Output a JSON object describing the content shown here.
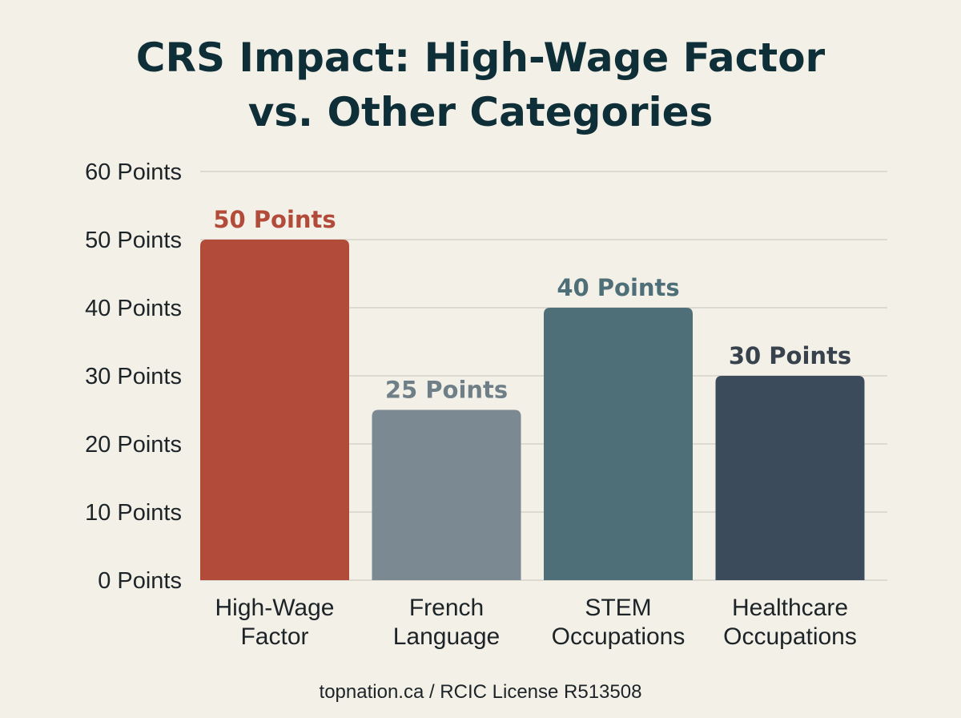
{
  "chart_data": {
    "type": "bar",
    "title_lines": [
      "CRS Impact: High-Wage Factor",
      "vs. Other Categories"
    ],
    "categories": [
      [
        "High-Wage",
        "Factor"
      ],
      [
        "French",
        "Language"
      ],
      [
        "STEM",
        "Occupations"
      ],
      [
        "Healthcare",
        "Occupations"
      ]
    ],
    "values": [
      50,
      25,
      40,
      30
    ],
    "value_labels": [
      "50 Points",
      "25 Points",
      "40 Points",
      "30 Points"
    ],
    "colors": [
      "#b24b3a",
      "#7a8992",
      "#4f6f78",
      "#3c4b5c"
    ],
    "label_colors": [
      "#b24b3a",
      "#6f7f88",
      "#4f6f78",
      "#37424d"
    ],
    "yticks": [
      0,
      10,
      20,
      30,
      40,
      50,
      60
    ],
    "ytick_labels": [
      "0 Points",
      "10 Points",
      "20 Points",
      "30 Points",
      "40 Points",
      "50 Points",
      "60 Points"
    ],
    "ylim": [
      0,
      60
    ],
    "grid": true,
    "legend": false
  },
  "footer": "topnation.ca / RCIC License R513508"
}
